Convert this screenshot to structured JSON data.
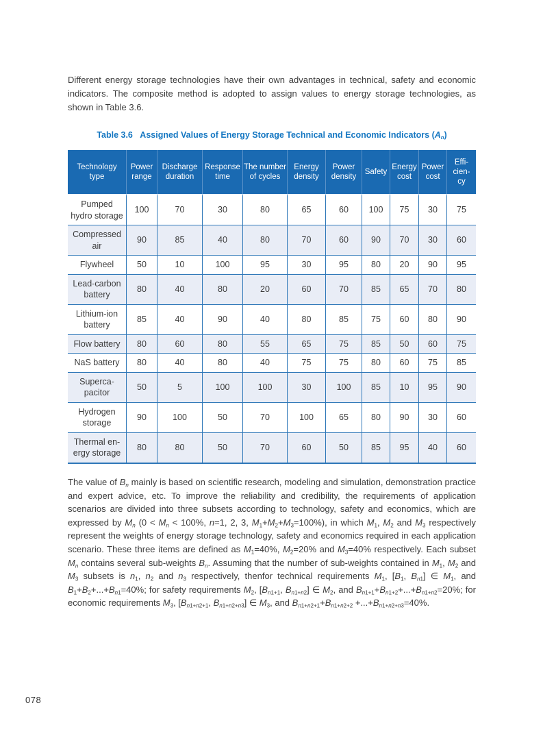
{
  "page": {
    "number": "078"
  },
  "colors": {
    "header_blue": "#1a6ab2",
    "row_shade": "#e9edf6",
    "border_blue": "#2e77b8",
    "caption_blue": "#1577c2",
    "body_text": "#3c3c3c"
  },
  "intro_paragraph": "Different energy storage technologies have their own advantages in technical, safety and economic indicators. The composite method is adopted to assign values to energy storage technologies, as shown in Table 3.6.",
  "table": {
    "caption_html": "Table 3.6&nbsp;&nbsp;&nbsp;Assigned Values of Energy Storage Technical and Economic Indicators (<i>A</i><sub><i>n</i></sub>)",
    "columns": [
      {
        "label_html": "Technology type"
      },
      {
        "label_html": "Power range"
      },
      {
        "label_html": "Discharge duration"
      },
      {
        "label_html": "Response time"
      },
      {
        "label_html": "The number of cycles"
      },
      {
        "label_html": "Energy density"
      },
      {
        "label_html": "Power density"
      },
      {
        "label_html": "Safety"
      },
      {
        "label_html": "Energy cost"
      },
      {
        "label_html": "Power cost"
      },
      {
        "label_html": "Effi-<br>cien-<br>cy"
      }
    ],
    "rows": [
      {
        "name_html": "Pumped<br>hydro storage",
        "values": [
          100,
          70,
          30,
          80,
          65,
          60,
          100,
          75,
          30,
          75
        ]
      },
      {
        "name_html": "Compressed<br>air",
        "values": [
          90,
          85,
          40,
          80,
          70,
          60,
          90,
          70,
          30,
          60
        ]
      },
      {
        "name_html": "Flywheel",
        "values": [
          50,
          10,
          100,
          95,
          30,
          95,
          80,
          20,
          90,
          95
        ]
      },
      {
        "name_html": "Lead-carbon<br>battery",
        "values": [
          80,
          40,
          80,
          20,
          60,
          70,
          85,
          65,
          70,
          80
        ]
      },
      {
        "name_html": "Lithium-ion<br>battery",
        "values": [
          85,
          40,
          90,
          40,
          80,
          85,
          75,
          60,
          80,
          90
        ]
      },
      {
        "name_html": "Flow battery",
        "values": [
          80,
          60,
          80,
          55,
          65,
          75,
          85,
          50,
          60,
          75
        ]
      },
      {
        "name_html": "NaS battery",
        "values": [
          80,
          40,
          80,
          40,
          75,
          75,
          80,
          60,
          75,
          85
        ]
      },
      {
        "name_html": "Superca-<br>pacitor",
        "values": [
          50,
          5,
          100,
          100,
          30,
          100,
          85,
          10,
          95,
          90
        ]
      },
      {
        "name_html": "Hydrogen<br>storage",
        "values": [
          90,
          100,
          50,
          70,
          100,
          65,
          80,
          90,
          30,
          60
        ]
      },
      {
        "name_html": "Thermal en-<br>ergy storage",
        "values": [
          80,
          80,
          50,
          70,
          60,
          50,
          85,
          95,
          40,
          60
        ]
      }
    ]
  },
  "closing_paragraph_html": "The value of <i>B</i><sub><i>n</i></sub> mainly is based on scientific research, modeling and simulation, demonstration practice and expert advice, etc. To improve the reliability and credibility, the requirements of application scenarios are divided into three subsets according to technology, safety and economics, which are expressed by <i>M</i><sub><i>n</i></sub> (0 &lt; <i>M</i><sub><i>n</i></sub> &lt; 100%, <i>n</i>=1, 2, 3, <i>M</i><sub>1</sub>+<i>M</i><sub>2</sub>+<i>M</i><sub>3</sub>=100%), in which <i>M</i><sub>1</sub>, <i>M</i><sub>2</sub> and <i>M</i><sub>3</sub> respectively represent the weights of energy storage technology, safety and economics required in each application scenario. These three items are defined as <i>M</i><sub>1</sub>=40%, <i>M</i><sub>2</sub>=20% and <i>M</i><sub>3</sub>=40% respectively. Each subset <i>M</i><sub><i>n</i></sub> contains several sub-weights <i>B</i><sub><i>n</i></sub>. Assuming that the number of sub-weights contained in <i>M</i><sub>1</sub>, <i>M</i><sub>2</sub> and <i>M</i><sub>3</sub> subsets is <i>n</i><sub>1</sub>, <i>n</i><sub>2</sub> and <i>n</i><sub>3</sub> respectively, thenfor technical requirements <i>M</i><sub>1</sub>, [<i>B</i><sub>1</sub>, <i>B</i><sub><i>n</i>1</sub>] ∈ <i>M</i><sub>1</sub>, and <i>B</i><sub>1</sub>+<i>B</i><sub>2</sub>+...+<i>B</i><sub><i>n</i>1</sub>=40%; for safety requirements <i>M</i><sub>2</sub>, [<i>B</i><sub><i>n</i>1+1</sub>, <i>B</i><sub><i>n</i>1+<i>n</i>2</sub>] ∈ <i>M</i><sub>2</sub>, and <i>B</i><sub><i>n</i>1+1</sub>+<i>B</i><sub><i>n</i>1+2</sub>+...+<i>B</i><sub><i>n</i>1+<i>n</i>2</sub>=20%; for economic requirements <i>M</i><sub>3</sub>, [<i>B</i><sub><i>n</i>1+<i>n</i>2+1</sub>, <i>B</i><sub><i>n</i>1+<i>n</i>2+<i>n</i>3</sub>] ∈ <i>M</i><sub>3</sub>, and <i>B</i><sub><i>n</i>1+<i>n</i>2+1</sub>+<i>B</i><sub><i>n</i>1+<i>n</i>2+2</sub> +...+<i>B</i><sub><i>n</i>1+<i>n</i>2+<i>n</i>3</sub>=40%."
}
